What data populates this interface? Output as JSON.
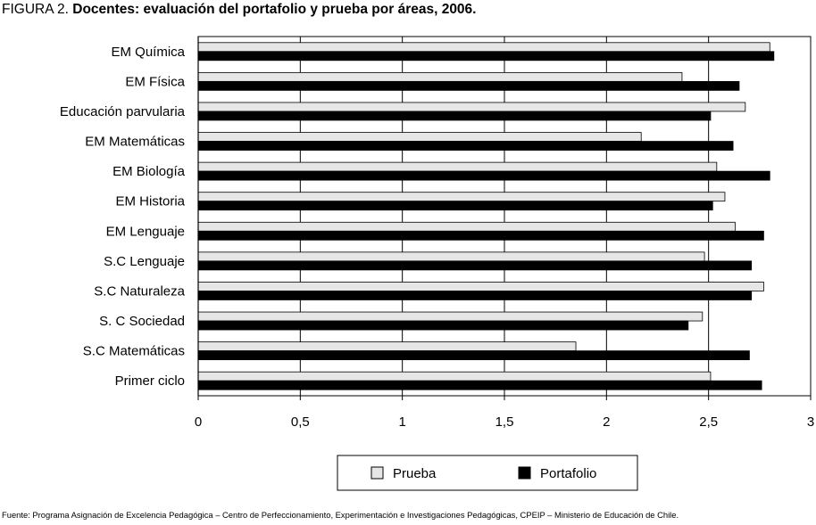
{
  "title": {
    "prefix": "FIGURA 2.",
    "text": "Docentes: evaluación del portafolio y prueba por áreas, 2006."
  },
  "source": "Fuente: Programa Asignación de Excelencia Pedagógica – Centro de Perfeccionamiento, Experimentación e Investigaciones Pedagógicas, CPEIP – Ministerio de Educación de Chile.",
  "chart_data": {
    "type": "bar",
    "orientation": "horizontal",
    "categories": [
      "EM Química",
      "EM Física",
      "Educación parvularia",
      "EM Matemáticas",
      "EM Biología",
      "EM Historia",
      "EM Lenguaje",
      "S.C Lenguaje",
      "S.C Naturaleza",
      "S. C Sociedad",
      "S.C Matemáticas",
      "Primer ciclo"
    ],
    "series": [
      {
        "name": "Prueba",
        "color": "#e6e6e6",
        "values": [
          2.8,
          2.37,
          2.68,
          2.17,
          2.54,
          2.58,
          2.63,
          2.48,
          2.77,
          2.47,
          1.85,
          2.51
        ]
      },
      {
        "name": "Portafolio",
        "color": "#000000",
        "values": [
          2.82,
          2.65,
          2.51,
          2.62,
          2.8,
          2.52,
          2.77,
          2.71,
          2.71,
          2.4,
          2.7,
          2.76
        ]
      }
    ],
    "xlim": [
      0,
      3
    ],
    "xticks": [
      0,
      0.5,
      1,
      1.5,
      2,
      2.5,
      3
    ],
    "xtick_labels": [
      "0",
      "0,5",
      "1",
      "1,5",
      "2",
      "2,5",
      "3"
    ],
    "grid": "vertical",
    "legend": "bottom-center"
  }
}
